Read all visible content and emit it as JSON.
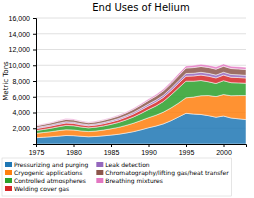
{
  "chart_data": {
    "type": "area",
    "stacked": true,
    "title": "End Uses of Helium",
    "ylabel": "Metric Tons",
    "x": [
      1975,
      1976,
      1977,
      1978,
      1979,
      1980,
      1981,
      1982,
      1983,
      1984,
      1985,
      1986,
      1987,
      1988,
      1989,
      1990,
      1991,
      1992,
      1993,
      1994,
      1995,
      1996,
      1997,
      1998,
      1999,
      2000,
      2001,
      2002,
      2003
    ],
    "xlim": [
      1975,
      2003
    ],
    "xticks": [
      1975,
      1980,
      1985,
      1990,
      1995,
      2000
    ],
    "ylim": [
      0,
      16000
    ],
    "yticks": [
      {
        "value": 2000,
        "label": "2,000"
      },
      {
        "value": 4000,
        "label": "4,000"
      },
      {
        "value": 6000,
        "label": "6,000"
      },
      {
        "value": 8000,
        "label": "8,000"
      },
      {
        "value": 10000,
        "label": "10,000"
      },
      {
        "value": 12000,
        "label": "12,000"
      },
      {
        "value": 14000,
        "label": "14,000"
      },
      {
        "value": 16000,
        "label": "16,000"
      }
    ],
    "grid": true,
    "legend": "bottom",
    "series": [
      {
        "name": "Pressurizing and purging",
        "values": [
          800,
          860,
          920,
          1000,
          1080,
          1060,
          980,
          920,
          960,
          1040,
          1130,
          1240,
          1390,
          1570,
          1800,
          2060,
          2280,
          2560,
          2960,
          3430,
          3900,
          3800,
          3750,
          3600,
          3400,
          3550,
          3300,
          3200,
          3100
        ]
      },
      {
        "name": "Cryogenic applications",
        "values": [
          550,
          600,
          650,
          700,
          730,
          720,
          680,
          660,
          690,
          730,
          800,
          870,
          970,
          1070,
          1180,
          1280,
          1380,
          1490,
          1620,
          1760,
          1970,
          2160,
          2380,
          2550,
          2620,
          2730,
          2830,
          2950,
          3050
        ]
      },
      {
        "name": "Controlled atmospheres",
        "values": [
          350,
          390,
          435,
          490,
          550,
          540,
          500,
          470,
          488,
          525,
          570,
          625,
          700,
          790,
          900,
          1035,
          1170,
          1360,
          1640,
          1920,
          2110,
          2020,
          1930,
          1750,
          1660,
          1760,
          1660,
          1610,
          1560
        ]
      },
      {
        "name": "Welding cover gas",
        "values": [
          250,
          265,
          280,
          300,
          310,
          300,
          275,
          260,
          270,
          285,
          305,
          325,
          355,
          390,
          430,
          460,
          490,
          520,
          550,
          590,
          630,
          660,
          690,
          710,
          710,
          710,
          690,
          680,
          670
        ]
      },
      {
        "name": "Leak detection",
        "values": [
          130,
          135,
          140,
          150,
          155,
          150,
          140,
          135,
          138,
          145,
          155,
          165,
          178,
          195,
          215,
          235,
          255,
          275,
          295,
          315,
          335,
          345,
          355,
          360,
          360,
          360,
          350,
          345,
          338
        ]
      },
      {
        "name": "Chromatography/lifting gas/heat transfer",
        "values": [
          220,
          235,
          250,
          270,
          295,
          290,
          268,
          255,
          263,
          278,
          298,
          323,
          350,
          385,
          425,
          465,
          510,
          555,
          605,
          655,
          700,
          720,
          738,
          748,
          755,
          762,
          755,
          748,
          738
        ]
      },
      {
        "name": "Breathing mixtures",
        "values": [
          80,
          88,
          96,
          105,
          112,
          110,
          102,
          96,
          99,
          107,
          116,
          126,
          135,
          148,
          165,
          183,
          200,
          218,
          237,
          255,
          272,
          281,
          289,
          295,
          296,
          299,
          291,
          286,
          280
        ]
      }
    ]
  }
}
